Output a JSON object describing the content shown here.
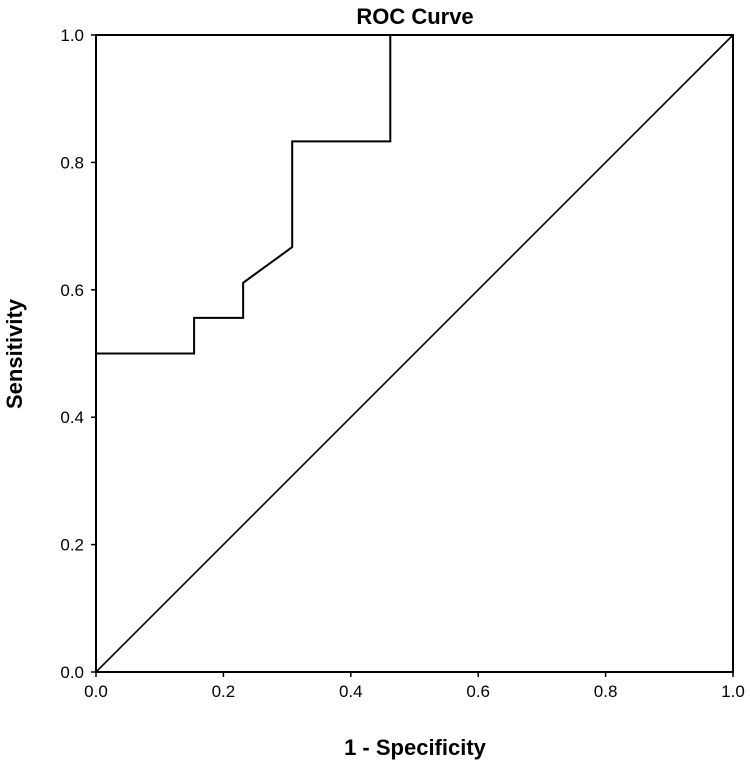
{
  "chart_data": {
    "type": "line",
    "title": "ROC Curve",
    "xlabel": "1 - Specificity",
    "ylabel": "Sensitivity",
    "xlim": [
      0.0,
      1.0
    ],
    "ylim": [
      0.0,
      1.0
    ],
    "x_ticks": [
      "0.0",
      "0.2",
      "0.4",
      "0.6",
      "0.8",
      "1.0"
    ],
    "y_ticks": [
      "0.0",
      "0.2",
      "0.4",
      "0.6",
      "0.8",
      "1.0"
    ],
    "grid": false,
    "series": [
      {
        "x": [
          0.0,
          0.0,
          0.154,
          0.154,
          0.231,
          0.231,
          0.308,
          0.308,
          0.462,
          0.462,
          1.0
        ],
        "y": [
          0.0,
          0.5,
          0.5,
          0.556,
          0.556,
          0.611,
          0.667,
          0.833,
          0.833,
          1.0,
          1.0
        ]
      },
      {
        "x": [
          0.0,
          1.0
        ],
        "y": [
          0.0,
          1.0
        ]
      }
    ]
  }
}
